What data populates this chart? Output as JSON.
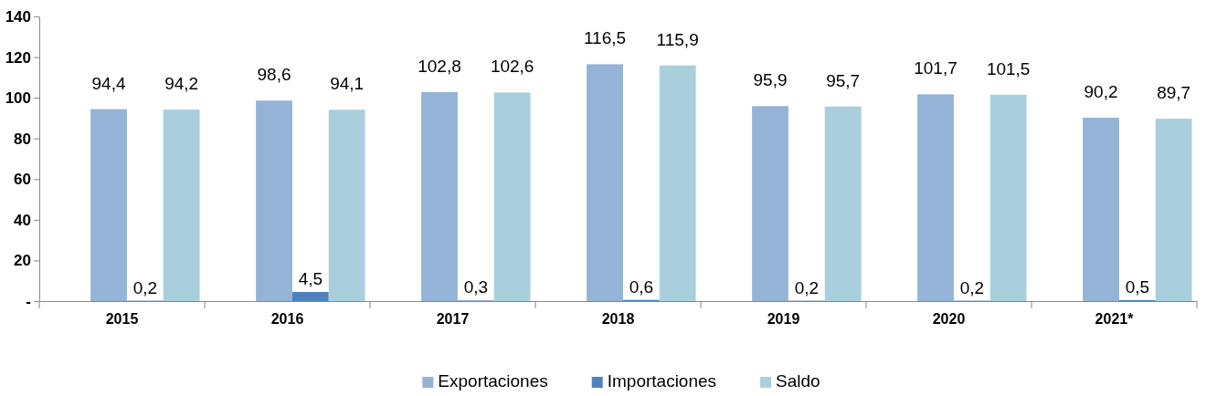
{
  "chart_data": {
    "type": "bar",
    "categories": [
      "2015",
      "2016",
      "2017",
      "2018",
      "2019",
      "2020",
      "2021*"
    ],
    "series": [
      {
        "name": "Exportaciones",
        "color": "#95b3d7",
        "values": [
          94.4,
          98.6,
          102.8,
          116.5,
          95.9,
          101.7,
          90.2
        ],
        "value_labels": [
          "94,4",
          "98,6",
          "102,8",
          "116,5",
          "95,9",
          "101,7",
          "90,2"
        ]
      },
      {
        "name": "Importaciones",
        "color": "#4f81bd",
        "values": [
          0.2,
          4.5,
          0.3,
          0.6,
          0.2,
          0.2,
          0.5
        ],
        "value_labels": [
          "0,2",
          "4,5",
          "0,3",
          "0,6",
          "0,2",
          "0,2",
          "0,5"
        ]
      },
      {
        "name": "Saldo",
        "color": "#a9cfdd",
        "values": [
          94.2,
          94.1,
          102.6,
          115.9,
          95.7,
          101.5,
          89.7
        ],
        "value_labels": [
          "94,2",
          "94,1",
          "102,6",
          "115,9",
          "95,7",
          "101,5",
          "89,7"
        ]
      }
    ],
    "ylim": [
      0,
      140
    ],
    "yticks": [
      {
        "value": 0,
        "label": "-"
      },
      20,
      40,
      60,
      80,
      100,
      120,
      140
    ],
    "grid": false,
    "legend": "bottom"
  }
}
